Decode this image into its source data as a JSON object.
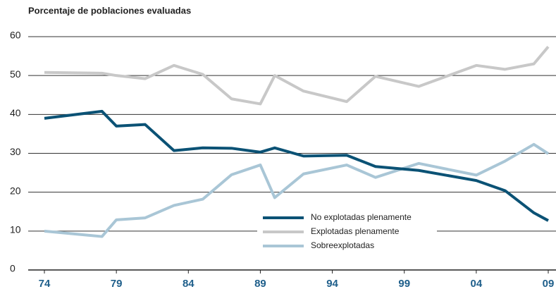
{
  "chart_data": {
    "type": "line",
    "title": "Porcentaje de poblaciones evaluadas",
    "x": [
      1974,
      1978,
      1979,
      1981,
      1983,
      1985,
      1987,
      1989,
      1990,
      1992,
      1995,
      1997,
      2000,
      2004,
      2006,
      2008,
      2009
    ],
    "series": [
      {
        "name": "No explotadas plenamente",
        "color": "#0b5275",
        "values": [
          39,
          40.8,
          37,
          37.4,
          30.7,
          31.4,
          31.3,
          30.3,
          31.4,
          29.3,
          29.5,
          26.6,
          25.6,
          23,
          20.4,
          14.7,
          12.7
        ]
      },
      {
        "name": "Explotadas plenamente",
        "color": "#c8c8c8",
        "values": [
          50.8,
          50.6,
          50,
          49.2,
          52.6,
          50.3,
          44,
          42.7,
          50,
          46,
          43.3,
          49.8,
          47.2,
          52.6,
          51.6,
          53,
          57.4
        ]
      },
      {
        "name": "Sobreexplotadas",
        "color": "#a9c6d6",
        "values": [
          10,
          8.6,
          12.9,
          13.4,
          16.6,
          18.2,
          24.5,
          27,
          18.6,
          24.7,
          27,
          23.8,
          27.4,
          24.4,
          28,
          32.3,
          29.9
        ]
      }
    ],
    "xlim": [
      1974,
      2009
    ],
    "xticks": [
      {
        "value": 1974,
        "label": "74"
      },
      {
        "value": 1979,
        "label": "79"
      },
      {
        "value": 1984,
        "label": "84"
      },
      {
        "value": 1989,
        "label": "89"
      },
      {
        "value": 1994,
        "label": "94"
      },
      {
        "value": 1999,
        "label": "99"
      },
      {
        "value": 2004,
        "label": "04"
      },
      {
        "value": 2009,
        "label": "09"
      }
    ],
    "ylim": [
      0,
      60
    ],
    "yticks": [
      0,
      10,
      20,
      30,
      40,
      50,
      60
    ],
    "grid": true,
    "legend": "lower center"
  }
}
